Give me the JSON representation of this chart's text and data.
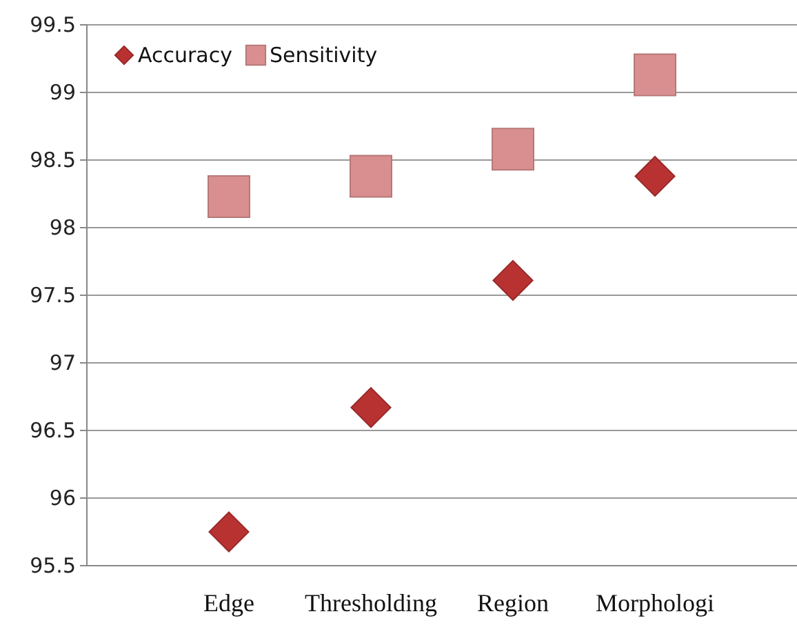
{
  "chart_data": {
    "type": "scatter",
    "categories": [
      "Edge",
      "Thresholding",
      "Region",
      "Morphologi"
    ],
    "series": [
      {
        "name": "Accuracy",
        "color": "#b83232",
        "marker": "diamond",
        "values": [
          95.75,
          96.67,
          97.61,
          98.38
        ]
      },
      {
        "name": "Sensitivity",
        "color": "#d98f8f",
        "marker": "square",
        "values": [
          98.23,
          98.38,
          98.58,
          99.13
        ]
      }
    ],
    "ylim": [
      95.5,
      99.5
    ],
    "yticks": [
      {
        "value": 95.5,
        "label": "95.5"
      },
      96,
      {
        "value": 96.5,
        "label": "96.5"
      },
      97,
      {
        "value": 97.5,
        "label": "97.5"
      },
      98,
      {
        "value": 98.5,
        "label": "98.5"
      },
      99,
      {
        "value": 99.5,
        "label": "99.5"
      }
    ],
    "grid": "y",
    "legend": "top left"
  }
}
